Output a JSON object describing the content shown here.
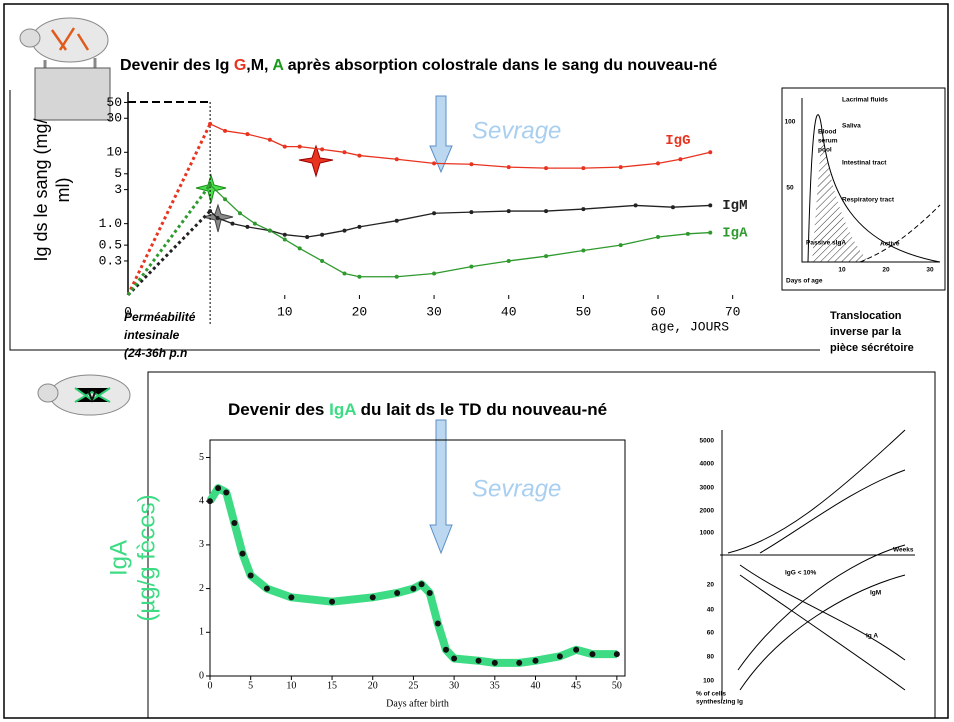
{
  "slide": {
    "top_title_parts": [
      {
        "text": "Devenir des  Ig ",
        "color": "#000000"
      },
      {
        "text": "G",
        "color": "#e8331f"
      },
      {
        "text": ",M, ",
        "color": "#000000"
      },
      {
        "text": "A",
        "color": "#1a9a1a"
      },
      {
        "text": " après ",
        "color": "#000000"
      },
      {
        "text": "absorption colostrale dans le sang du nouveau-né",
        "color": "#000000"
      }
    ],
    "top_annotation": "Sevrage",
    "permeability_note": [
      "Perméabilité",
      "intesinale",
      "(24-36h p.n"
    ],
    "translocation_note": [
      "Translocation",
      "inverse par la",
      "pièce sécrétoire"
    ],
    "bottom_title_parts": [
      {
        "text": "Devenir des ",
        "color": "#000000"
      },
      {
        "text": "IgA",
        "color": "#3ddc84"
      },
      {
        "text": " du  lait ds le TD du nouveau-né",
        "color": "#000000"
      }
    ],
    "bottom_annotation": "Sevrage"
  },
  "chart_data": [
    {
      "type": "line",
      "log_y": true,
      "ylabel": [
        "Ig  ds le sang (mg/",
        "ml)"
      ],
      "ylabel_color": "#000000",
      "xlabel": "age, JOURS",
      "origin_label": "0",
      "xlim": [
        -11,
        75
      ],
      "xticks": [
        10,
        20,
        30,
        40,
        50,
        60,
        70
      ],
      "ylim": [
        0.1,
        70
      ],
      "yticks": [
        0.3,
        0.5,
        {
          "value": 1,
          "label": "1.0"
        },
        3,
        5,
        10,
        30,
        50
      ],
      "series": [
        {
          "name": "IgG",
          "color": "#e8331f",
          "x": [
            0,
            2,
            5,
            8,
            10,
            12,
            15,
            18,
            20,
            25,
            30,
            35,
            40,
            45,
            50,
            55,
            60,
            63,
            67
          ],
          "values": [
            25,
            20,
            18,
            15,
            12,
            12,
            11,
            10,
            9,
            8,
            7,
            6.8,
            6.2,
            6,
            6,
            6.2,
            7,
            8,
            10
          ]
        },
        {
          "name": "IgM",
          "color": "#222222",
          "x": [
            0,
            1,
            3,
            5,
            8,
            10,
            13,
            15,
            18,
            20,
            25,
            30,
            35,
            40,
            45,
            50,
            57,
            62,
            67
          ],
          "values": [
            1.5,
            1.2,
            1.0,
            0.9,
            0.8,
            0.7,
            0.65,
            0.7,
            0.8,
            0.9,
            1.1,
            1.4,
            1.45,
            1.5,
            1.5,
            1.6,
            1.8,
            1.7,
            1.8
          ]
        },
        {
          "name": "IgA",
          "color": "#2e9a2e",
          "x": [
            0,
            2,
            4,
            6,
            8,
            10,
            12,
            15,
            18,
            20,
            25,
            30,
            35,
            40,
            45,
            50,
            55,
            60,
            64,
            67
          ],
          "values": [
            3.5,
            2.2,
            1.4,
            1.0,
            0.8,
            0.6,
            0.45,
            0.3,
            0.2,
            0.18,
            0.18,
            0.2,
            0.25,
            0.3,
            0.35,
            0.42,
            0.5,
            0.65,
            0.72,
            0.75
          ]
        }
      ]
    },
    {
      "type": "line",
      "log_y": false,
      "ylabel": [
        "IgA",
        "(µg/g fèces)"
      ],
      "ylabel_color": "#3ddc84",
      "xlabel": "Days after birth",
      "xlim": [
        0,
        51
      ],
      "xticks": [
        0,
        5,
        10,
        15,
        20,
        25,
        30,
        35,
        40,
        45,
        50
      ],
      "ylim": [
        0,
        5.4
      ],
      "yticks": [
        0,
        1,
        2,
        3,
        4,
        5
      ],
      "series": [
        {
          "color": "#3ddc84",
          "x": [
            0,
            1,
            2,
            3,
            4,
            5,
            7,
            10,
            15,
            20,
            23,
            25,
            26,
            27,
            28,
            29,
            30,
            33,
            35,
            38,
            40,
            43,
            45,
            47,
            50
          ],
          "values": [
            4.0,
            4.3,
            4.2,
            3.5,
            2.8,
            2.3,
            2.0,
            1.8,
            1.7,
            1.8,
            1.9,
            2.0,
            2.1,
            1.9,
            1.2,
            0.6,
            0.4,
            0.35,
            0.3,
            0.3,
            0.35,
            0.45,
            0.6,
            0.5,
            0.5
          ]
        }
      ]
    }
  ],
  "insets": [
    {
      "labels": [
        "Lacrimal fluids",
        "Saliva",
        "Intestinal tract",
        "Respiratory tract",
        "Blood",
        "serum",
        "pool",
        "Passive sIgA",
        "Active",
        "Days of age",
        "100",
        "50",
        "10",
        "20",
        "30"
      ]
    },
    {
      "labels": [
        "5000",
        "4000",
        "3000",
        "2000",
        "1000",
        "Weeks",
        "IgG < 10%",
        "IgM",
        "Ig A",
        "20",
        "40",
        "60",
        "80",
        "100",
        "% of cells",
        "synthesizing Ig"
      ]
    }
  ]
}
